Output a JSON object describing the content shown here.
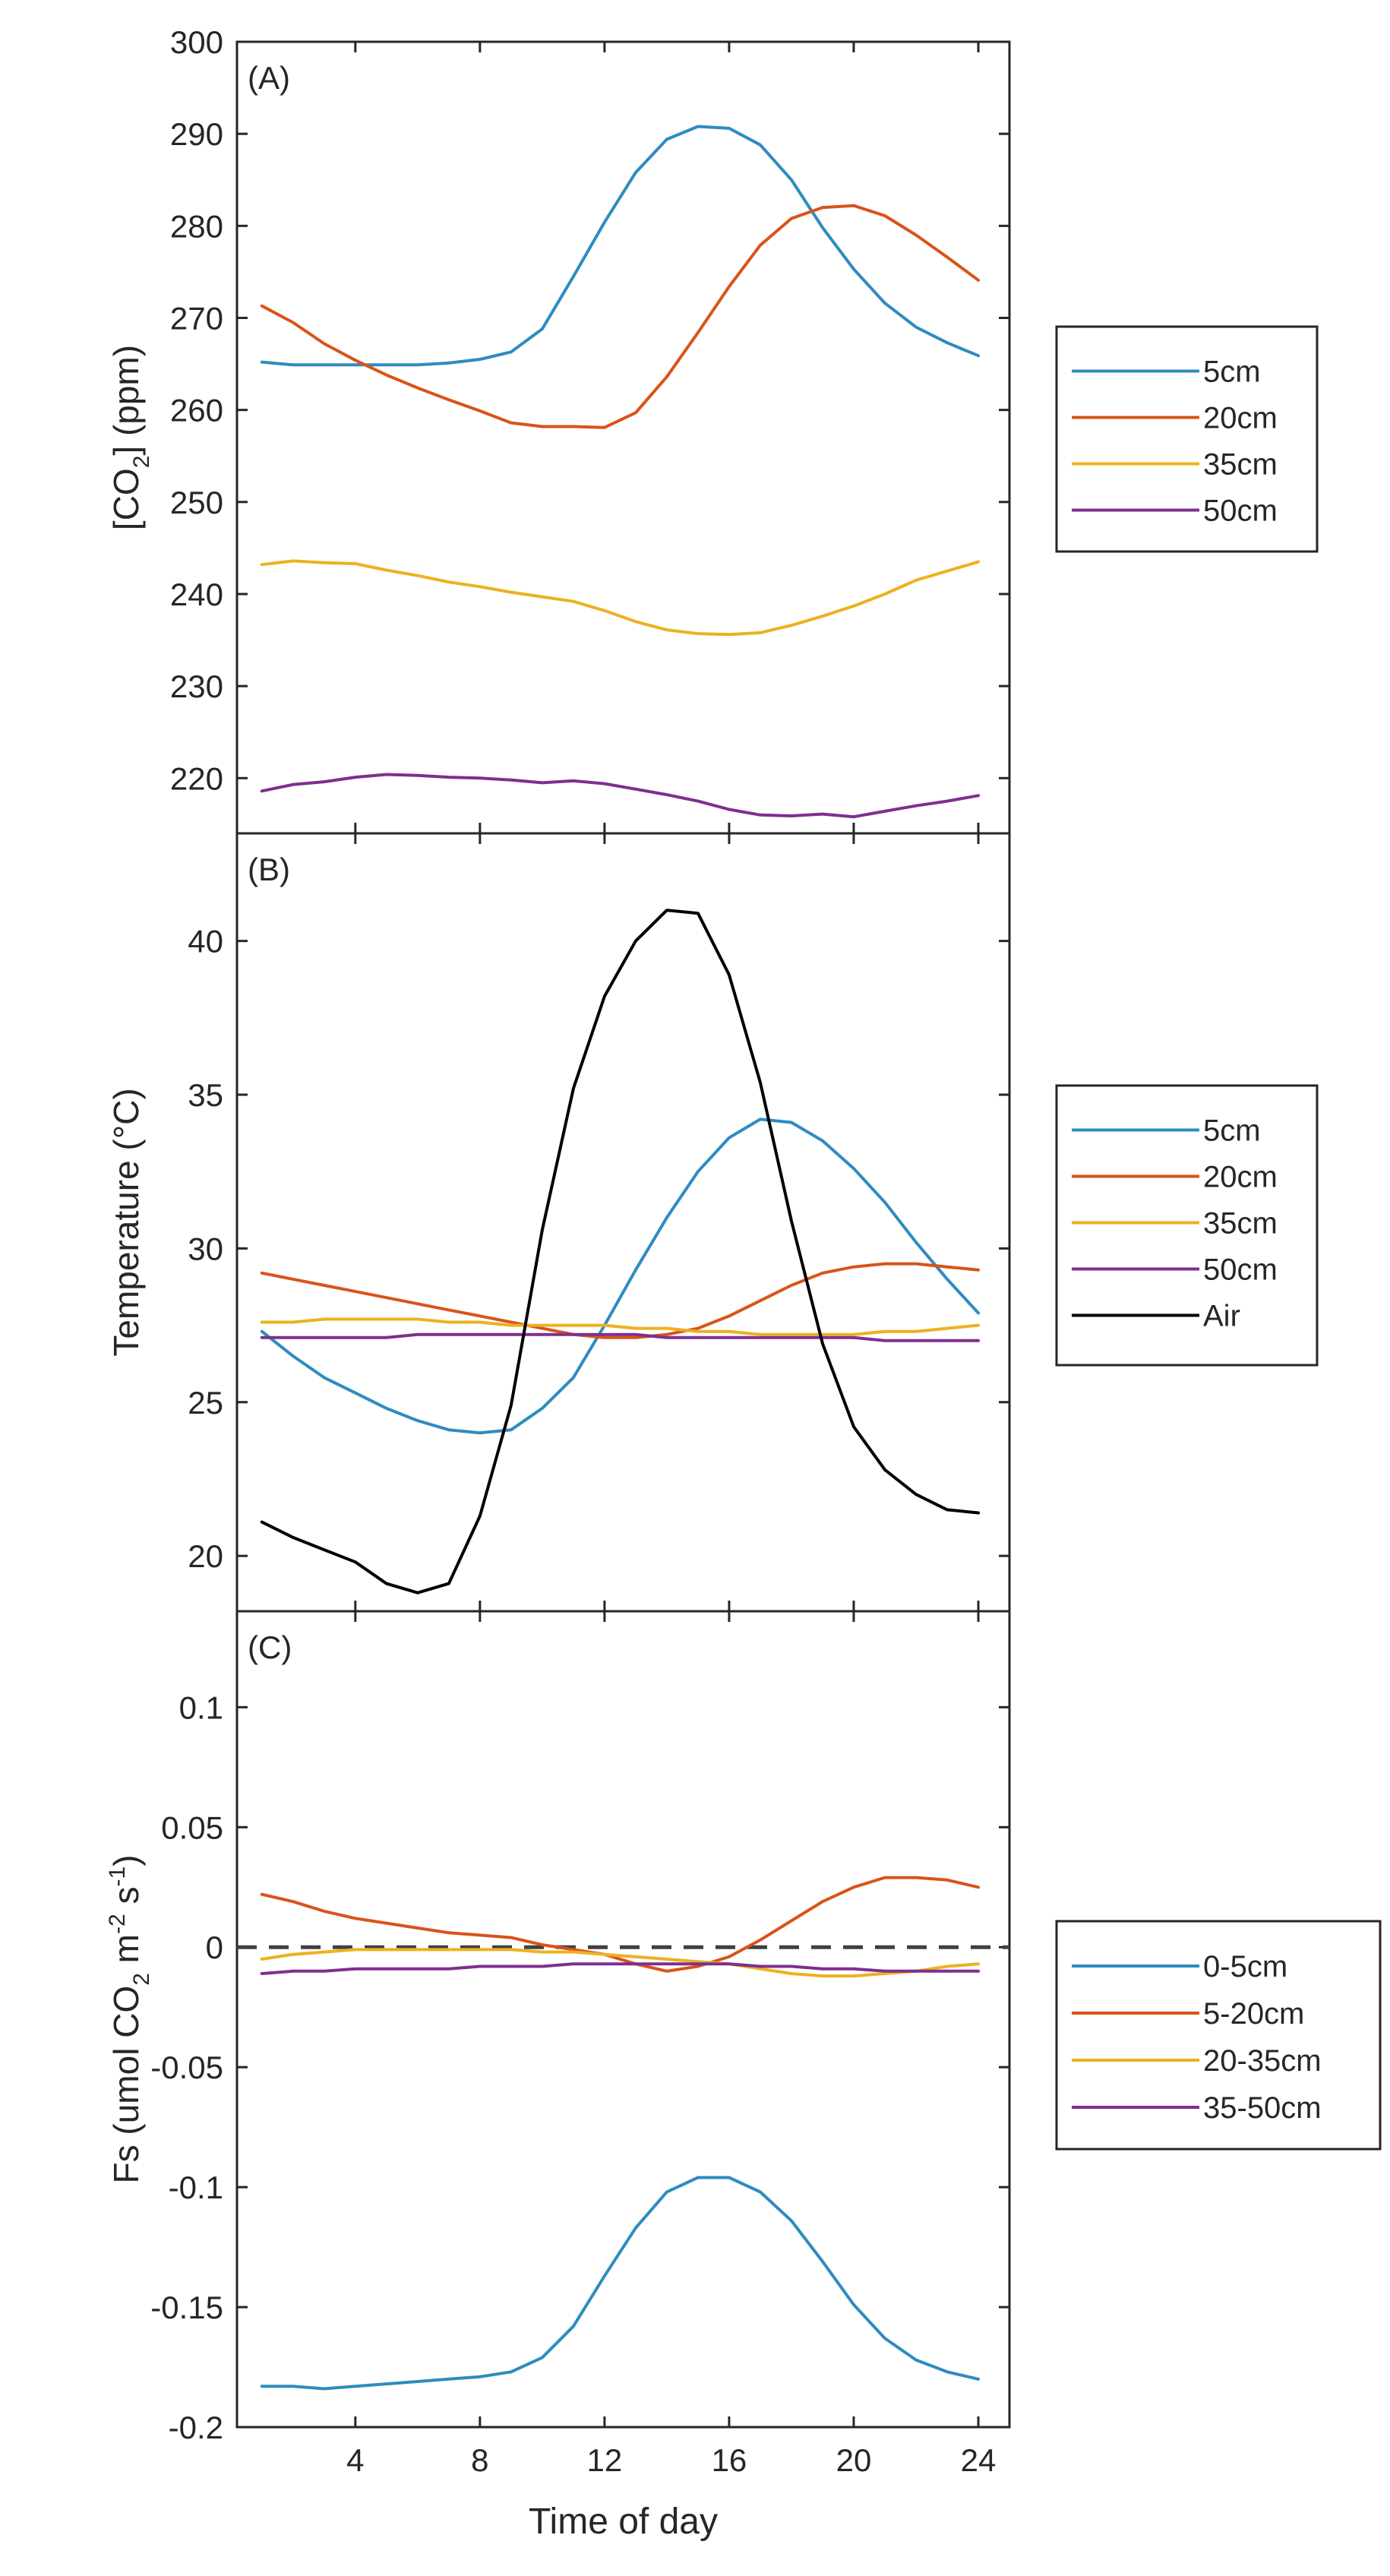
{
  "chart_data": [
    {
      "panel_label": "(A)",
      "type": "line",
      "ylabel_parts": [
        "[CO",
        "2",
        "] (ppm)"
      ],
      "ylim": [
        214,
        300
      ],
      "yticks": [
        220,
        230,
        240,
        250,
        260,
        270,
        280,
        290,
        300
      ],
      "x": [
        1,
        2,
        3,
        4,
        5,
        6,
        7,
        8,
        9,
        10,
        11,
        12,
        13,
        14,
        15,
        16,
        17,
        18,
        19,
        20,
        21,
        22,
        23,
        24
      ],
      "legend": [
        "5cm",
        "20cm",
        "35cm",
        "50cm"
      ],
      "series": [
        {
          "name": "5cm",
          "color": "#2e8bc0",
          "values": [
            265.2,
            264.9,
            264.9,
            264.9,
            264.9,
            264.9,
            265.1,
            265.5,
            266.3,
            268.8,
            274.5,
            280.4,
            285.8,
            289.4,
            290.8,
            290.6,
            288.8,
            285,
            279.8,
            275.3,
            271.6,
            269,
            267.3,
            265.9
          ]
        },
        {
          "name": "20cm",
          "color": "#d95319",
          "values": [
            271.3,
            269.5,
            267.2,
            265.4,
            263.8,
            262.4,
            261.1,
            259.9,
            258.6,
            258.2,
            258.2,
            258.1,
            259.7,
            263.6,
            268.4,
            273.4,
            277.9,
            280.8,
            282,
            282.2,
            281.1,
            279,
            276.6,
            274.1
          ]
        },
        {
          "name": "35cm",
          "color": "#edb120",
          "values": [
            243.2,
            243.6,
            243.4,
            243.3,
            242.6,
            242,
            241.3,
            240.8,
            240.2,
            239.7,
            239.2,
            238.2,
            237,
            236.1,
            235.7,
            235.6,
            235.8,
            236.6,
            237.6,
            238.7,
            240,
            241.5,
            242.5,
            243.5
          ]
        },
        {
          "name": "50cm",
          "color": "#7e2f8e",
          "values": [
            218.6,
            219.3,
            219.6,
            220.1,
            220.4,
            220.3,
            220.1,
            220,
            219.8,
            219.5,
            219.7,
            219.4,
            218.8,
            218.2,
            217.5,
            216.6,
            216,
            215.9,
            216.1,
            215.8,
            216.4,
            217,
            217.5,
            218.1
          ]
        }
      ]
    },
    {
      "panel_label": "(B)",
      "type": "line",
      "ylabel": "Temperature (°C)",
      "ylim": [
        18.2,
        43.5
      ],
      "yticks": [
        20,
        25,
        30,
        35,
        40
      ],
      "x": [
        1,
        2,
        3,
        4,
        5,
        6,
        7,
        8,
        9,
        10,
        11,
        12,
        13,
        14,
        15,
        16,
        17,
        18,
        19,
        20,
        21,
        22,
        23,
        24
      ],
      "legend": [
        "5cm",
        "20cm",
        "35cm",
        "50cm",
        "Air"
      ],
      "series": [
        {
          "name": "5cm",
          "color": "#2e8bc0",
          "values": [
            27.3,
            26.5,
            25.8,
            25.3,
            24.8,
            24.4,
            24.1,
            24.0,
            24.1,
            24.8,
            25.8,
            27.5,
            29.3,
            31.0,
            32.5,
            33.6,
            34.2,
            34.1,
            33.5,
            32.6,
            31.5,
            30.2,
            29,
            27.9
          ]
        },
        {
          "name": "20cm",
          "color": "#d95319",
          "values": [
            29.2,
            29.0,
            28.8,
            28.6,
            28.4,
            28.2,
            28.0,
            27.8,
            27.6,
            27.4,
            27.2,
            27.1,
            27.1,
            27.2,
            27.4,
            27.8,
            28.3,
            28.8,
            29.2,
            29.4,
            29.5,
            29.5,
            29.4,
            29.3
          ]
        },
        {
          "name": "35cm",
          "color": "#edb120",
          "values": [
            27.6,
            27.6,
            27.7,
            27.7,
            27.7,
            27.7,
            27.6,
            27.6,
            27.5,
            27.5,
            27.5,
            27.5,
            27.4,
            27.4,
            27.3,
            27.3,
            27.2,
            27.2,
            27.2,
            27.2,
            27.3,
            27.3,
            27.4,
            27.5
          ]
        },
        {
          "name": "50cm",
          "color": "#7e2f8e",
          "values": [
            27.1,
            27.1,
            27.1,
            27.1,
            27.1,
            27.2,
            27.2,
            27.2,
            27.2,
            27.2,
            27.2,
            27.2,
            27.2,
            27.1,
            27.1,
            27.1,
            27.1,
            27.1,
            27.1,
            27.1,
            27.0,
            27.0,
            27.0,
            27.0
          ]
        },
        {
          "name": "Air",
          "color": "#000000",
          "values": [
            21.1,
            20.6,
            20.2,
            19.8,
            19.1,
            18.8,
            19.1,
            21.3,
            24.9,
            30.6,
            35.2,
            38.2,
            40.0,
            41.0,
            40.9,
            38.9,
            35.4,
            30.9,
            26.9,
            24.2,
            22.8,
            22,
            21.5,
            21.4
          ]
        }
      ]
    },
    {
      "panel_label": "(C)",
      "type": "line",
      "ylabel_parts": [
        "Fs (umol CO",
        "2",
        " m",
        "-2",
        " s",
        "-1",
        ")"
      ],
      "ylim": [
        -0.2,
        0.14
      ],
      "yticks": [
        -0.2,
        -0.15,
        -0.1,
        -0.05,
        0,
        0.05,
        0.1
      ],
      "ytick_labels": [
        "-0.2",
        "-0.15",
        "-0.1",
        "-0.05",
        "0",
        "0.05",
        "0.1"
      ],
      "x": [
        1,
        2,
        3,
        4,
        5,
        6,
        7,
        8,
        9,
        10,
        11,
        12,
        13,
        14,
        15,
        16,
        17,
        18,
        19,
        20,
        21,
        22,
        23,
        24
      ],
      "zero_line": true,
      "legend": [
        "0-5cm",
        "5-20cm",
        "20-35cm",
        "35-50cm"
      ],
      "series": [
        {
          "name": "0-5cm",
          "color": "#2e8bc0",
          "values": [
            -0.183,
            -0.183,
            -0.184,
            -0.183,
            -0.182,
            -0.181,
            -0.18,
            -0.179,
            -0.177,
            -0.171,
            -0.158,
            -0.137,
            -0.117,
            -0.102,
            -0.096,
            -0.096,
            -0.102,
            -0.114,
            -0.131,
            -0.149,
            -0.163,
            -0.172,
            -0.177,
            -0.18
          ]
        },
        {
          "name": "5-20cm",
          "color": "#d95319",
          "values": [
            0.022,
            0.019,
            0.015,
            0.012,
            0.01,
            0.008,
            0.006,
            0.005,
            0.004,
            0.001,
            -0.001,
            -0.003,
            -0.007,
            -0.01,
            -0.008,
            -0.004,
            0.003,
            0.011,
            0.019,
            0.025,
            0.029,
            0.029,
            0.028,
            0.025
          ]
        },
        {
          "name": "20-35cm",
          "color": "#edb120",
          "values": [
            -0.005,
            -0.003,
            -0.002,
            -0.001,
            -0.001,
            -0.001,
            -0.001,
            -0.001,
            -0.001,
            -0.002,
            -0.002,
            -0.003,
            -0.004,
            -0.005,
            -0.006,
            -0.007,
            -0.009,
            -0.011,
            -0.012,
            -0.012,
            -0.011,
            -0.01,
            -0.008,
            -0.007
          ]
        },
        {
          "name": "35-50cm",
          "color": "#7e2f8e",
          "values": [
            -0.011,
            -0.01,
            -0.01,
            -0.009,
            -0.009,
            -0.009,
            -0.009,
            -0.008,
            -0.008,
            -0.008,
            -0.007,
            -0.007,
            -0.007,
            -0.007,
            -0.007,
            -0.007,
            -0.008,
            -0.008,
            -0.009,
            -0.009,
            -0.01,
            -0.01,
            -0.01,
            -0.01
          ]
        }
      ]
    }
  ],
  "x_axis": {
    "label": "Time of day",
    "xlim": [
      0.2,
      25
    ],
    "ticks": [
      4,
      8,
      12,
      16,
      20,
      24
    ],
    "tick_labels": [
      "4",
      "8",
      "12",
      "16",
      "20",
      "24"
    ]
  }
}
